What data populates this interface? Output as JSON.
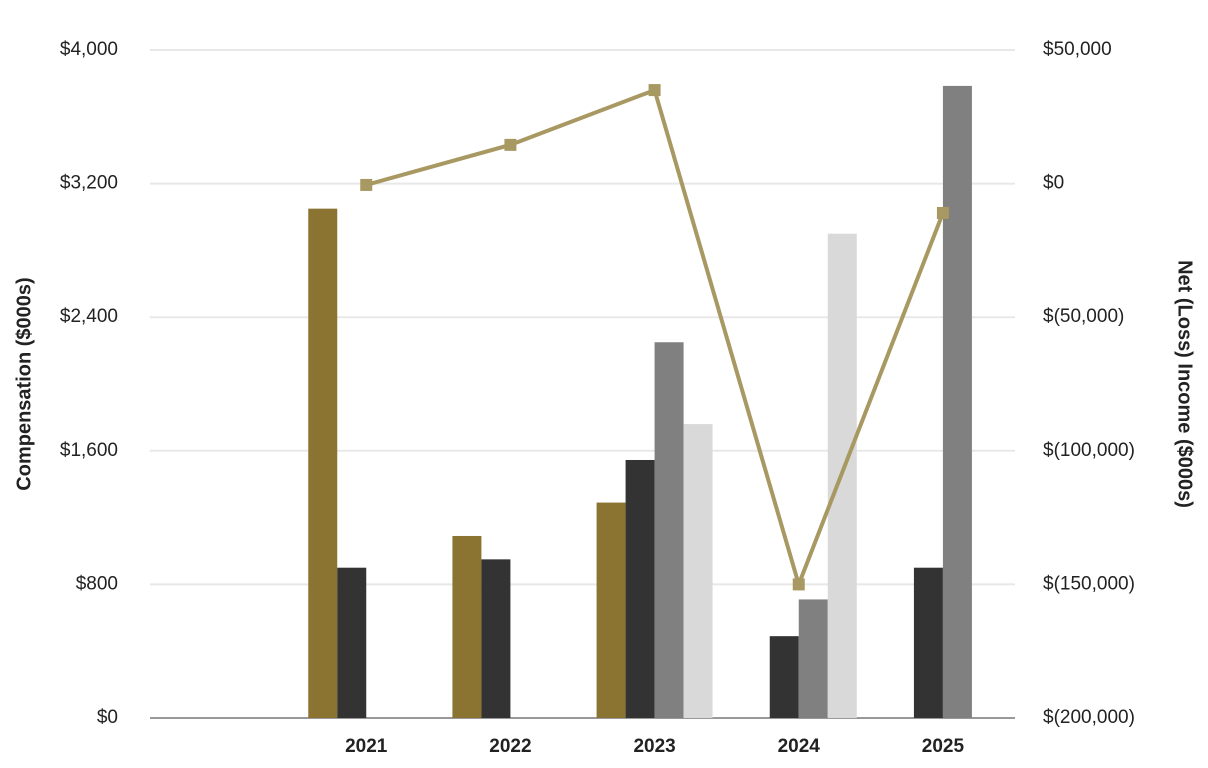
{
  "chart_data": {
    "type": "bar",
    "categories": [
      null,
      "2021",
      "2022",
      "2023",
      "2024",
      "2025"
    ],
    "ylabel": "Compensation ($000s)",
    "y2label": "Net (Loss) Income ($000s)",
    "ylim": [
      0,
      4000
    ],
    "yticks": [
      {
        "value": 0,
        "label": "$0"
      },
      {
        "value": 800,
        "label": "$800"
      },
      {
        "value": 1600,
        "label": "$1,600"
      },
      {
        "value": 2400,
        "label": "$2,400"
      },
      {
        "value": 3200,
        "label": "$3,200"
      },
      {
        "value": 4000,
        "label": "$4,000"
      }
    ],
    "y2lim": [
      -200000,
      50000
    ],
    "y2ticks": [
      {
        "value": -200000,
        "label": "$(200,000)"
      },
      {
        "value": -150000,
        "label": "$(150,000)"
      },
      {
        "value": -100000,
        "label": "$(100,000)"
      },
      {
        "value": -50000,
        "label": "$(50,000)"
      },
      {
        "value": 0,
        "label": "$0"
      },
      {
        "value": 50000,
        "label": "$50,000"
      }
    ],
    "grid": true,
    "series": [
      {
        "color": "#8b7332",
        "values": [
          null,
          3050,
          1090,
          1290,
          null,
          null
        ]
      },
      {
        "color": "#333333",
        "values": [
          null,
          900,
          950,
          1545,
          490,
          900
        ]
      },
      {
        "color": "#808080",
        "values": [
          null,
          null,
          null,
          2250,
          710,
          3785
        ]
      },
      {
        "color": "#d9d9d9",
        "values": [
          null,
          null,
          null,
          1760,
          2900,
          null
        ]
      },
      {
        "type": "line",
        "axis": "y2",
        "color": "#a89862",
        "values": [
          null,
          -500,
          14500,
          35000,
          -150000,
          -11000
        ]
      }
    ]
  }
}
